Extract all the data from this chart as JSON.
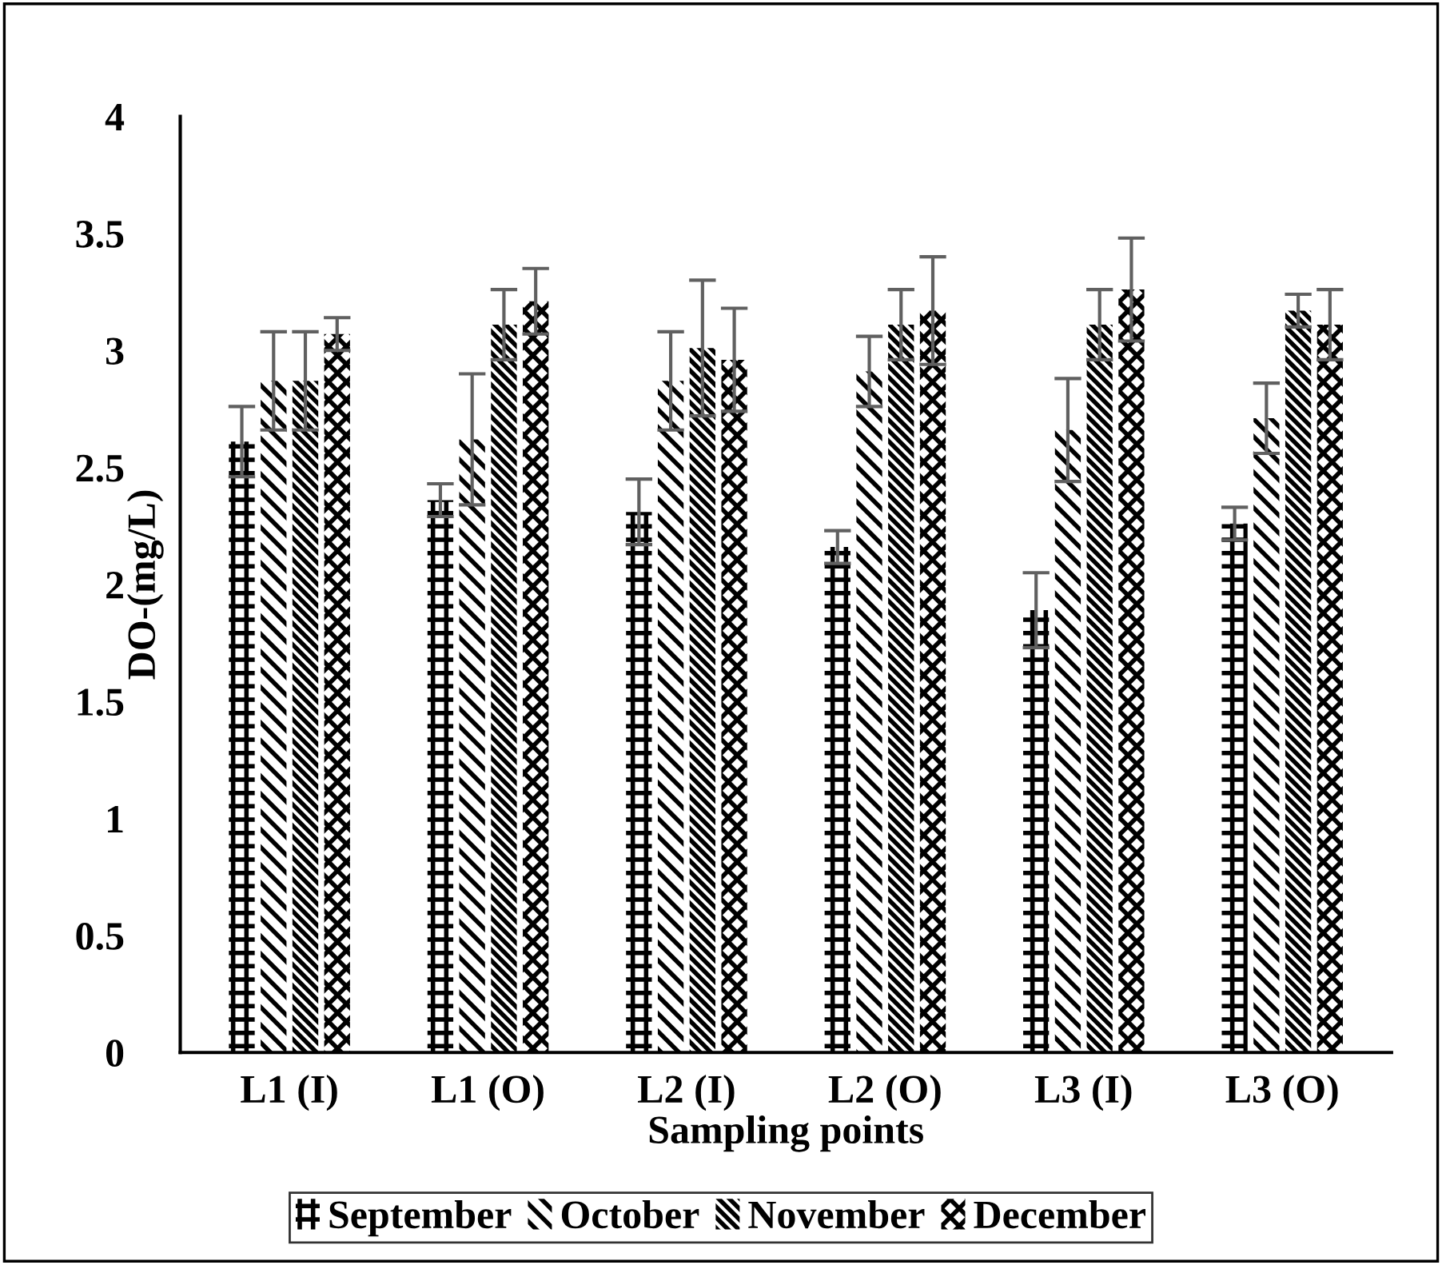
{
  "chart_data": {
    "type": "bar",
    "xlabel": "Sampling points",
    "ylabel": "DO-(mg/L)",
    "categories": [
      "L1 (I)",
      "L1 (O)",
      "L2 (I)",
      "L2 (O)",
      "L3 (I)",
      "L3 (O)"
    ],
    "ylim": [
      0,
      4
    ],
    "yticks": [
      0,
      0.5,
      1,
      1.5,
      2,
      2.5,
      3,
      3.5,
      4
    ],
    "grid": false,
    "legend": "bottom",
    "series": [
      {
        "name": "September",
        "color": "#000000",
        "values": [
          2.61,
          2.36,
          2.31,
          2.16,
          1.89,
          2.26
        ],
        "errors": [
          0.15,
          0.07,
          0.14,
          0.07,
          0.16,
          0.07
        ]
      },
      {
        "name": "October",
        "color": "#000000",
        "values": [
          2.87,
          2.62,
          2.87,
          2.91,
          2.66,
          2.71
        ],
        "errors": [
          0.21,
          0.28,
          0.21,
          0.15,
          0.22,
          0.15
        ]
      },
      {
        "name": "November",
        "color": "#000000",
        "values": [
          2.87,
          3.11,
          3.01,
          3.11,
          3.11,
          3.17
        ],
        "errors": [
          0.21,
          0.15,
          0.29,
          0.15,
          0.15,
          0.07
        ]
      },
      {
        "name": "December",
        "color": "#000000",
        "values": [
          3.07,
          3.21,
          2.96,
          3.17,
          3.26,
          3.11
        ],
        "errors": [
          0.07,
          0.14,
          0.22,
          0.23,
          0.22,
          0.15
        ]
      }
    ]
  }
}
